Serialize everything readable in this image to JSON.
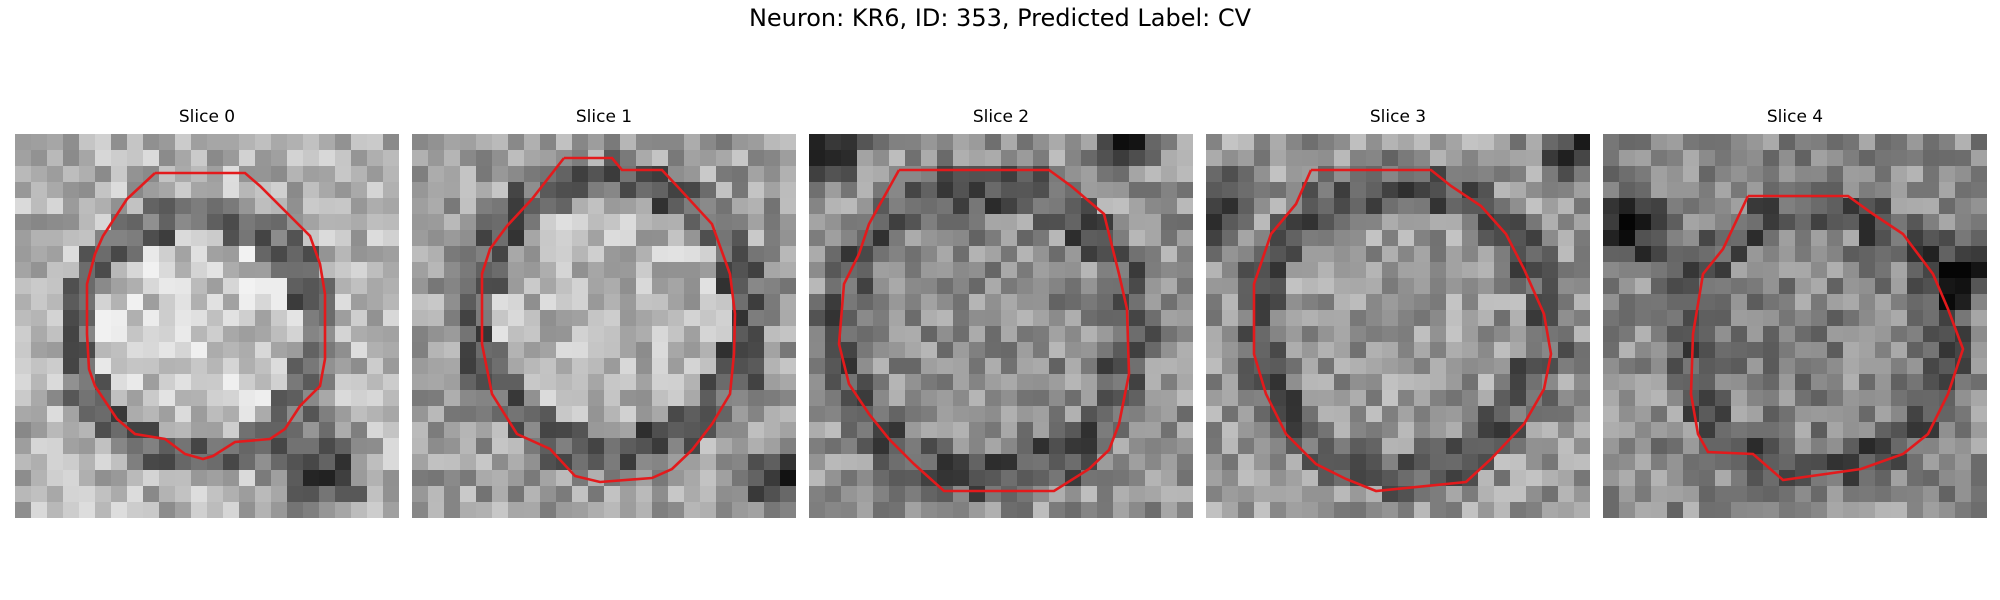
{
  "figure": {
    "title": "Neuron: KR6, ID: 353, Predicted Label: CV"
  },
  "panels": [
    {
      "title": "Slice 0",
      "seed": 11,
      "base": 0.7,
      "ring": 0.38,
      "inner": 0.78,
      "dark": [
        [
          0.8,
          0.88,
          0.18
        ]
      ]
    },
    {
      "title": "Slice 1",
      "seed": 23,
      "base": 0.62,
      "ring": 0.34,
      "inner": 0.72,
      "dark": [
        [
          0.95,
          0.9,
          0.12
        ]
      ]
    },
    {
      "title": "Slice 2",
      "seed": 37,
      "base": 0.58,
      "ring": 0.32,
      "inner": 0.55,
      "dark": [
        [
          0.82,
          0.02,
          0.1
        ],
        [
          0.05,
          0.05,
          0.12
        ]
      ]
    },
    {
      "title": "Slice 3",
      "seed": 41,
      "base": 0.6,
      "ring": 0.33,
      "inner": 0.6,
      "dark": [
        [
          0.0,
          0.2,
          0.15
        ],
        [
          0.96,
          0.05,
          0.12
        ]
      ]
    },
    {
      "title": "Slice 4",
      "seed": 53,
      "base": 0.55,
      "ring": 0.3,
      "inner": 0.52,
      "dark": [
        [
          0.05,
          0.25,
          0.16
        ],
        [
          0.95,
          0.35,
          0.14
        ]
      ]
    }
  ],
  "style": {
    "contour_color": "#e31a1c",
    "colormap": "gray"
  }
}
